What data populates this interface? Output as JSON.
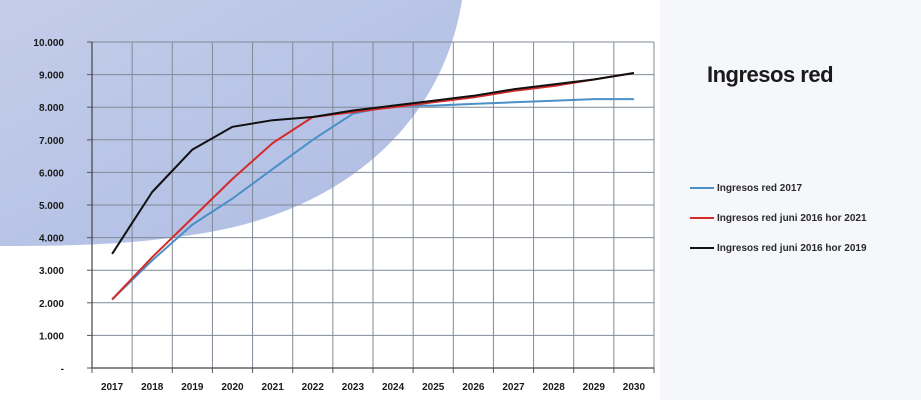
{
  "chart_data": {
    "type": "line",
    "title": "Ingresos red",
    "categories": [
      "2017",
      "2018",
      "2019",
      "2020",
      "2021",
      "2022",
      "2023",
      "2024",
      "2025",
      "2026",
      "2027",
      "2028",
      "2029",
      "2030"
    ],
    "yticks": [
      "-",
      "1.000",
      "2.000",
      "3.000",
      "4.000",
      "5.000",
      "6.000",
      "7.000",
      "8.000",
      "9.000",
      "10.000"
    ],
    "ylim": [
      0,
      10000
    ],
    "grid": true,
    "legend_position": "right",
    "series": [
      {
        "name": "Ingresos red 2017",
        "color": "#4a90c8",
        "values": [
          2100,
          3300,
          4400,
          5200,
          6100,
          7000,
          7800,
          8050,
          8050,
          8100,
          8150,
          8200,
          8250,
          8250
        ]
      },
      {
        "name": "Ingresos red juni 2016 hor 2021",
        "color": "#d42a2a",
        "values": [
          2100,
          3400,
          4600,
          5800,
          6900,
          7700,
          7850,
          8000,
          8150,
          8300,
          8500,
          8650,
          8850,
          9050
        ]
      },
      {
        "name": "Ingresos red juni 2016 hor 2019",
        "color": "#111111",
        "values": [
          3500,
          5400,
          6700,
          7400,
          7600,
          7700,
          7900,
          8050,
          8200,
          8350,
          8550,
          8700,
          8850,
          9050
        ]
      }
    ]
  }
}
